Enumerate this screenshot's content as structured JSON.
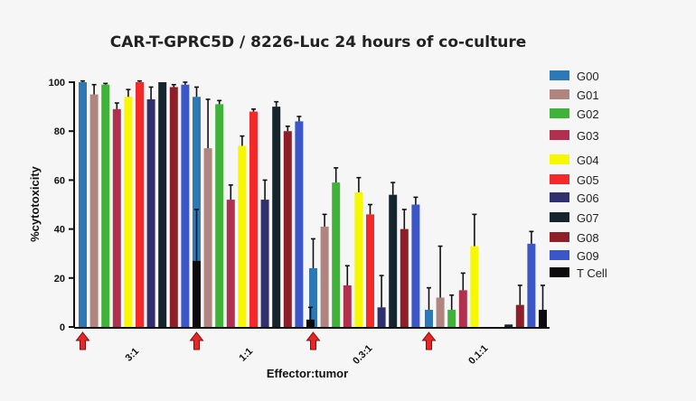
{
  "chart_data": {
    "type": "bar",
    "title": "CAR-T-GPRC5D / 8226-Luc 24 hours of co-culture",
    "xlabel": "Effector:tumor",
    "ylabel": "%cytotoxicity",
    "ylim": [
      0,
      100
    ],
    "yticks": [
      0,
      20,
      40,
      60,
      80,
      100
    ],
    "categories": [
      "3:1",
      "1:1",
      "0.3:1",
      "0.1:1"
    ],
    "legend_position": "right",
    "markers": "red-arrow-under-first-bar-of-each-group",
    "series": [
      {
        "name": "G00",
        "color": "#2f78b6",
        "values": [
          100,
          94,
          24,
          7
        ],
        "errors": [
          0.5,
          4,
          12,
          9
        ]
      },
      {
        "name": "G01",
        "color": "#b0857f",
        "values": [
          95,
          73,
          41,
          12
        ],
        "errors": [
          4,
          20,
          5,
          21
        ]
      },
      {
        "name": "G02",
        "color": "#3fb23a",
        "values": [
          99,
          91,
          59,
          7
        ],
        "errors": [
          0.5,
          1.5,
          6,
          6
        ]
      },
      {
        "name": "G03",
        "color": "#b0304e",
        "values": [
          89,
          52,
          17,
          15
        ],
        "errors": [
          2.5,
          6,
          8,
          7
        ]
      },
      {
        "name": "G04",
        "color": "#f7f700",
        "values": [
          94,
          74,
          55,
          33
        ],
        "errors": [
          3,
          4,
          6,
          13
        ]
      },
      {
        "name": "G05",
        "color": "#f42a2a",
        "values": [
          100,
          88,
          46,
          0
        ],
        "errors": [
          0.5,
          1,
          4,
          0
        ]
      },
      {
        "name": "G06",
        "color": "#30306e",
        "values": [
          93,
          52,
          8,
          0
        ],
        "errors": [
          5,
          8,
          13,
          0
        ]
      },
      {
        "name": "G07",
        "color": "#15252e",
        "values": [
          100,
          90,
          54,
          1
        ],
        "errors": [
          0,
          2,
          5,
          0
        ]
      },
      {
        "name": "G08",
        "color": "#8e1f28",
        "values": [
          98,
          80,
          40,
          9
        ],
        "errors": [
          1,
          2,
          8,
          8
        ]
      },
      {
        "name": "G09",
        "color": "#3b56c9",
        "values": [
          99,
          84,
          50,
          34
        ],
        "errors": [
          1,
          2,
          3,
          5
        ]
      },
      {
        "name": "T Cell",
        "color": "#0c0c0c",
        "values": [
          27,
          3,
          0,
          7
        ],
        "errors": [
          21,
          5,
          0,
          10
        ]
      }
    ]
  }
}
